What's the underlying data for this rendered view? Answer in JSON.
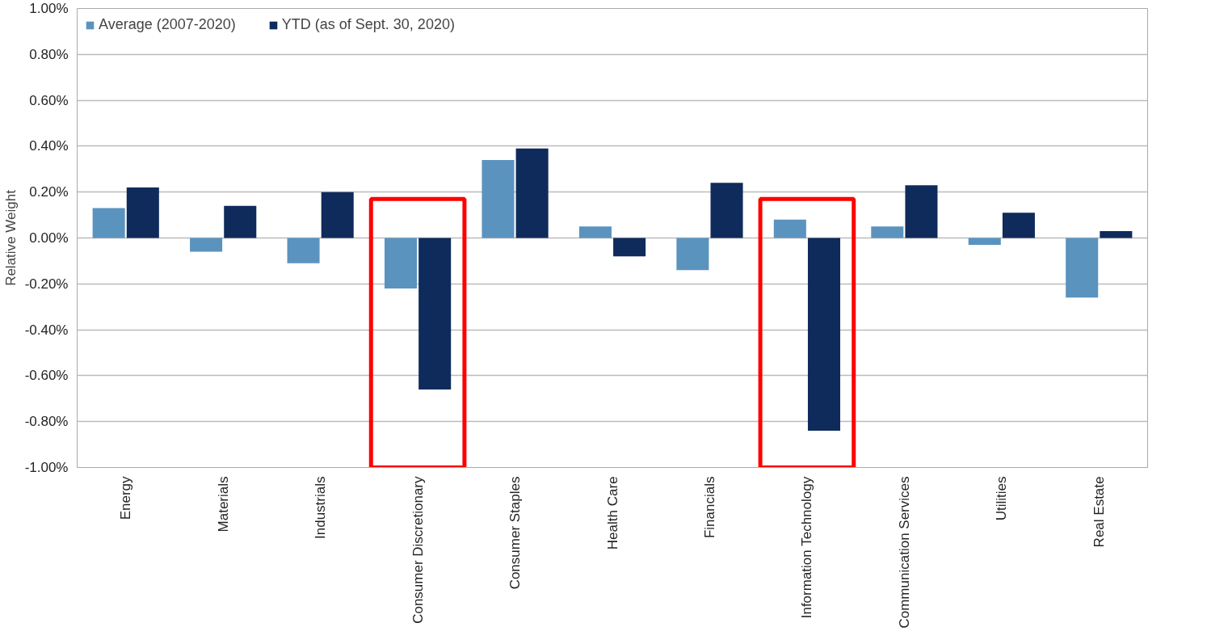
{
  "chart_data": {
    "type": "bar",
    "ylabel": "Relative Weight",
    "categories": [
      "Energy",
      "Materials",
      "Industrials",
      "Consumer Discretionary",
      "Consumer Staples",
      "Health Care",
      "Financials",
      "Information Technology",
      "Communication Services",
      "Utilities",
      "Real Estate"
    ],
    "series": [
      {
        "name": "Average (2007-2020)",
        "color": "#5b93bf",
        "values": [
          0.13,
          -0.06,
          -0.11,
          -0.22,
          0.34,
          0.05,
          -0.14,
          0.08,
          0.05,
          -0.03,
          -0.26
        ]
      },
      {
        "name": "YTD (as of Sept. 30, 2020)",
        "color": "#0f2b5b",
        "values": [
          0.22,
          0.14,
          0.2,
          -0.66,
          0.39,
          -0.08,
          0.24,
          -0.84,
          0.23,
          0.11,
          0.03
        ]
      }
    ],
    "ylim": [
      -1,
      1
    ],
    "yticks": [
      {
        "value": -1,
        "label": "-1.00%"
      },
      {
        "value": -0.8,
        "label": "-0.80%"
      },
      {
        "value": -0.6,
        "label": "-0.60%"
      },
      {
        "value": -0.4,
        "label": "-0.40%"
      },
      {
        "value": -0.2,
        "label": "-0.20%"
      },
      {
        "value": 0,
        "label": "0.00%"
      },
      {
        "value": 0.2,
        "label": "0.20%"
      },
      {
        "value": 0.4,
        "label": "0.40%"
      },
      {
        "value": 0.6,
        "label": "0.60%"
      },
      {
        "value": 0.8,
        "label": "0.80%"
      },
      {
        "value": 1,
        "label": "1.00%"
      }
    ],
    "grid": "y",
    "legend": "top left"
  }
}
